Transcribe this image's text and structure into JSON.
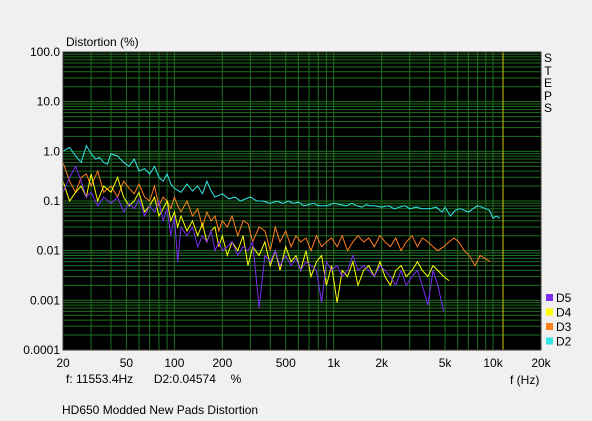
{
  "chart_data": {
    "type": "line",
    "title": "Distortion (%)",
    "xlabel": "f (Hz)",
    "ylabel": "Distortion (%)",
    "x_scale": "log",
    "y_scale": "log",
    "xlim": [
      20,
      20000
    ],
    "ylim": [
      0.0001,
      100
    ],
    "x_ticks": [
      {
        "value": 20,
        "label": "20"
      },
      {
        "value": 50,
        "label": "50"
      },
      {
        "value": 100,
        "label": "100"
      },
      {
        "value": 200,
        "label": "200"
      },
      {
        "value": 500,
        "label": "500"
      },
      {
        "value": 1000,
        "label": "1k"
      },
      {
        "value": 2000,
        "label": "2k"
      },
      {
        "value": 5000,
        "label": "5k"
      },
      {
        "value": 10000,
        "label": "10k"
      },
      {
        "value": 20000,
        "label": "20k"
      }
    ],
    "y_ticks": [
      {
        "value": 100,
        "label": "100.0"
      },
      {
        "value": 10,
        "label": "10.0"
      },
      {
        "value": 1,
        "label": "1.0"
      },
      {
        "value": 0.1,
        "label": "0.1"
      },
      {
        "value": 0.01,
        "label": "0.01"
      },
      {
        "value": 0.001,
        "label": "0.001"
      },
      {
        "value": 0.0001,
        "label": "0.0001"
      }
    ],
    "grid": true,
    "background": "#000000",
    "grid_color": "#1f6e1f",
    "cursor": {
      "frequency_hz": 11553.4,
      "color": "#c8c800"
    },
    "legend_position": "bottom-right",
    "series": [
      {
        "name": "D2",
        "color": "#33e6e6",
        "x": [
          20,
          22,
          24,
          26,
          28,
          30,
          32,
          34,
          36,
          38,
          40,
          44,
          48,
          52,
          56,
          60,
          65,
          70,
          75,
          80,
          85,
          90,
          95,
          100,
          110,
          120,
          130,
          140,
          150,
          160,
          170,
          180,
          190,
          200,
          220,
          240,
          260,
          280,
          300,
          330,
          360,
          400,
          440,
          480,
          520,
          560,
          600,
          650,
          700,
          750,
          800,
          900,
          1000,
          1100,
          1200,
          1300,
          1400,
          1500,
          1600,
          1700,
          1800,
          2000,
          2200,
          2400,
          2600,
          2800,
          3000,
          3300,
          3600,
          4000,
          4400,
          4800,
          5000,
          5400,
          5800,
          6200,
          6600,
          7000,
          7500,
          8000,
          8500,
          9000,
          9500,
          10000,
          10500,
          11000
        ],
        "y": [
          1.0,
          1.2,
          0.8,
          0.6,
          1.3,
          0.9,
          0.7,
          0.75,
          0.6,
          0.55,
          0.9,
          0.8,
          0.6,
          0.5,
          0.7,
          0.4,
          0.45,
          0.35,
          0.5,
          0.3,
          0.25,
          0.35,
          0.22,
          0.18,
          0.15,
          0.22,
          0.16,
          0.2,
          0.14,
          0.25,
          0.16,
          0.12,
          0.13,
          0.14,
          0.11,
          0.12,
          0.1,
          0.11,
          0.12,
          0.1,
          0.1,
          0.09,
          0.1,
          0.09,
          0.1,
          0.09,
          0.095,
          0.08,
          0.085,
          0.09,
          0.08,
          0.08,
          0.09,
          0.085,
          0.08,
          0.09,
          0.08,
          0.075,
          0.085,
          0.08,
          0.08,
          0.075,
          0.08,
          0.07,
          0.075,
          0.08,
          0.07,
          0.075,
          0.07,
          0.07,
          0.075,
          0.06,
          0.075,
          0.05,
          0.065,
          0.07,
          0.065,
          0.06,
          0.07,
          0.08,
          0.075,
          0.07,
          0.065,
          0.045,
          0.05,
          0.045
        ]
      },
      {
        "name": "D3",
        "color": "#ff7f1f",
        "x": [
          20,
          22,
          24,
          26,
          28,
          30,
          33,
          36,
          40,
          44,
          48,
          52,
          56,
          60,
          65,
          70,
          75,
          80,
          85,
          90,
          95,
          100,
          105,
          110,
          120,
          130,
          140,
          150,
          160,
          170,
          180,
          190,
          200,
          215,
          230,
          250,
          270,
          290,
          310,
          340,
          370,
          400,
          430,
          460,
          500,
          540,
          580,
          620,
          670,
          720,
          780,
          840,
          900,
          970,
          1050,
          1130,
          1220,
          1320,
          1420,
          1540,
          1660,
          1800,
          1950,
          2100,
          2270,
          2450,
          2650,
          2850,
          3100,
          3350,
          3600,
          3900,
          4200,
          4500,
          4900,
          5300,
          5700,
          6100,
          6600,
          7100,
          7700,
          8300,
          8900,
          9600
        ],
        "y": [
          0.6,
          0.25,
          0.15,
          0.3,
          0.35,
          0.2,
          0.4,
          0.15,
          0.2,
          0.12,
          0.25,
          0.18,
          0.14,
          0.22,
          0.12,
          0.1,
          0.2,
          0.08,
          0.12,
          0.1,
          0.07,
          0.12,
          0.08,
          0.06,
          0.1,
          0.05,
          0.07,
          0.03,
          0.06,
          0.04,
          0.05,
          0.025,
          0.04,
          0.03,
          0.05,
          0.02,
          0.04,
          0.035,
          0.015,
          0.03,
          0.025,
          0.01,
          0.03,
          0.015,
          0.025,
          0.012,
          0.02,
          0.015,
          0.018,
          0.01,
          0.02,
          0.012,
          0.015,
          0.018,
          0.012,
          0.02,
          0.01,
          0.015,
          0.02,
          0.015,
          0.018,
          0.012,
          0.02,
          0.015,
          0.012,
          0.018,
          0.01,
          0.015,
          0.02,
          0.012,
          0.018,
          0.015,
          0.012,
          0.01,
          0.012,
          0.015,
          0.018,
          0.015,
          0.01,
          0.008,
          0.005,
          0.008,
          0.007,
          0.006
        ]
      },
      {
        "name": "D4",
        "color": "#ffff00",
        "x": [
          20,
          22,
          24,
          26,
          28,
          30,
          33,
          36,
          40,
          44,
          48,
          52,
          56,
          60,
          65,
          70,
          75,
          80,
          85,
          90,
          95,
          100,
          105,
          110,
          120,
          130,
          140,
          150,
          160,
          170,
          180,
          190,
          200,
          215,
          230,
          250,
          270,
          290,
          310,
          340,
          370,
          400,
          430,
          460,
          500,
          540,
          580,
          620,
          670,
          720,
          780,
          840,
          900,
          970,
          1050,
          1130,
          1220,
          1320,
          1420,
          1540,
          1660,
          1800,
          1950,
          2100,
          2270,
          2450,
          2650,
          2850,
          3100,
          3350,
          3600,
          3900,
          4200,
          4500,
          4900,
          5300
        ],
        "y": [
          0.25,
          0.1,
          0.15,
          0.2,
          0.12,
          0.35,
          0.1,
          0.2,
          0.15,
          0.3,
          0.12,
          0.08,
          0.1,
          0.15,
          0.06,
          0.08,
          0.12,
          0.05,
          0.07,
          0.1,
          0.04,
          0.06,
          0.03,
          0.05,
          0.025,
          0.04,
          0.02,
          0.035,
          0.015,
          0.025,
          0.03,
          0.012,
          0.02,
          0.008,
          0.015,
          0.01,
          0.02,
          0.005,
          0.012,
          0.008,
          0.015,
          0.005,
          0.01,
          0.004,
          0.012,
          0.006,
          0.008,
          0.004,
          0.01,
          0.003,
          0.006,
          0.008,
          0.002,
          0.005,
          0.0009,
          0.004,
          0.003,
          0.006,
          0.002,
          0.004,
          0.005,
          0.003,
          0.006,
          0.003,
          0.002,
          0.004,
          0.005,
          0.003,
          0.004,
          0.006,
          0.004,
          0.003,
          0.005,
          0.004,
          0.003,
          0.0025
        ]
      },
      {
        "name": "D5",
        "color": "#7b2cf0",
        "x": [
          20,
          22,
          24,
          26,
          28,
          30,
          33,
          36,
          40,
          44,
          48,
          52,
          56,
          60,
          65,
          70,
          75,
          80,
          85,
          90,
          95,
          100,
          105,
          110,
          120,
          130,
          140,
          150,
          160,
          170,
          180,
          190,
          200,
          215,
          230,
          250,
          270,
          290,
          310,
          340,
          370,
          400,
          430,
          460,
          500,
          540,
          580,
          620,
          670,
          720,
          780,
          840,
          900,
          970,
          1050,
          1130,
          1220,
          1320,
          1420,
          1540,
          1660,
          1800,
          1950,
          2100,
          2270,
          2450,
          2650,
          2850,
          3100,
          3350,
          3600,
          3900,
          4200,
          4500,
          4900
        ],
        "y": [
          0.15,
          0.3,
          0.5,
          0.25,
          0.12,
          0.15,
          0.08,
          0.12,
          0.09,
          0.12,
          0.06,
          0.09,
          0.07,
          0.11,
          0.05,
          0.08,
          0.06,
          0.1,
          0.04,
          0.07,
          0.02,
          0.05,
          0.006,
          0.03,
          0.02,
          0.03,
          0.012,
          0.02,
          0.015,
          0.025,
          0.01,
          0.015,
          0.01,
          0.012,
          0.015,
          0.008,
          0.012,
          0.01,
          0.015,
          0.0007,
          0.008,
          0.006,
          0.01,
          0.005,
          0.008,
          0.005,
          0.007,
          0.004,
          0.006,
          0.005,
          0.004,
          0.0009,
          0.006,
          0.004,
          0.005,
          0.003,
          0.004,
          0.008,
          0.004,
          0.005,
          0.004,
          0.003,
          0.005,
          0.004,
          0.003,
          0.002,
          0.004,
          0.002,
          0.003,
          0.004,
          0.002,
          0.0008,
          0.004,
          0.002,
          0.0006
        ]
      }
    ]
  },
  "side_label": "STEPS",
  "legend": [
    {
      "label": "D5",
      "color": "#7b2cf0"
    },
    {
      "label": "D4",
      "color": "#ffff00"
    },
    {
      "label": "D3",
      "color": "#ff7f1f"
    },
    {
      "label": "D2",
      "color": "#33e6e6"
    }
  ],
  "readout": {
    "frequency": "f: 11553.4Hz",
    "value": "D2:0.04574",
    "unit": "%"
  },
  "caption": "HD650 Modded New Pads Distortion"
}
